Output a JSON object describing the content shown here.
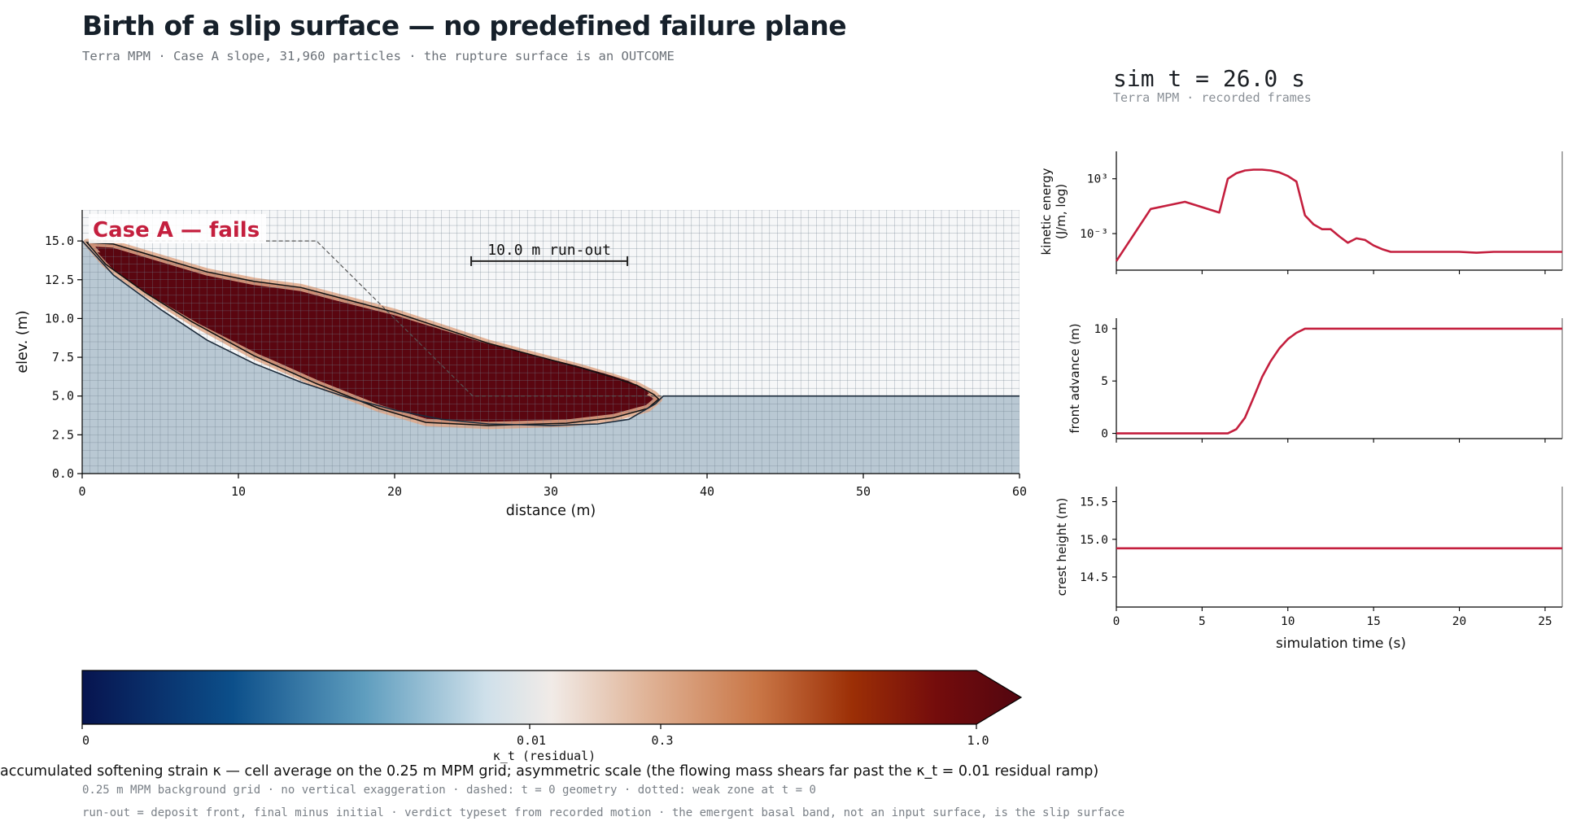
{
  "header": {
    "title": "Birth of a slip surface — no predefined failure plane",
    "subtitle": "Terra MPM · Case A slope, 31,960 particles · the rupture surface is an OUTCOME"
  },
  "sim_readout": {
    "time_label": "sim t = 26.0 s",
    "source_label": "Terra MPM · recorded frames"
  },
  "colors": {
    "accent": "#c41f3e",
    "deposit_dark": "#5a0610",
    "ground": "#b9c8d3",
    "grid": "#6d7e8c"
  },
  "chart_data": [
    {
      "type": "heatmap",
      "title": "",
      "xlabel": "distance (m)",
      "ylabel": "elev. (m)",
      "xlim": [
        0,
        60
      ],
      "ylim": [
        0,
        17
      ],
      "xticks": [
        "0",
        "10",
        "20",
        "30",
        "40",
        "50",
        "60"
      ],
      "yticks": [
        "0.0",
        "2.5",
        "5.0",
        "7.5",
        "10.0",
        "12.5",
        "15.0"
      ],
      "annotation_verdict": "Case A — fails",
      "annotation_runout": "10.0 m run-out",
      "runout_bar_m": [
        24.9,
        34.9
      ],
      "runout_bar_y": 13.7,
      "grid": true,
      "grid_spacing_m": 0.25,
      "initial_geometry_dashed": [
        [
          0.5,
          15.0
        ],
        [
          15.0,
          15.0
        ],
        [
          25.0,
          5.0
        ],
        [
          60.0,
          5.0
        ]
      ],
      "deposit_outline": [
        [
          0.3,
          14.9
        ],
        [
          2,
          14.8
        ],
        [
          5,
          13.9
        ],
        [
          8,
          13.0
        ],
        [
          11,
          12.4
        ],
        [
          14,
          12.0
        ],
        [
          17,
          11.2
        ],
        [
          20,
          10.4
        ],
        [
          23,
          9.4
        ],
        [
          26,
          8.4
        ],
        [
          29,
          7.6
        ],
        [
          32,
          6.8
        ],
        [
          34,
          6.2
        ],
        [
          35.5,
          5.7
        ],
        [
          36.6,
          5.1
        ],
        [
          36.9,
          4.8
        ],
        [
          36.2,
          4.2
        ],
        [
          34,
          3.6
        ],
        [
          31,
          3.25
        ],
        [
          26,
          3.1
        ],
        [
          22,
          3.3
        ],
        [
          19,
          4.2
        ],
        [
          15,
          5.8
        ],
        [
          11,
          7.6
        ],
        [
          7,
          9.8
        ],
        [
          4,
          11.7
        ],
        [
          1.5,
          13.5
        ],
        [
          0.3,
          14.9
        ]
      ],
      "ground_surface_after": [
        [
          0,
          15.0
        ],
        [
          2,
          12.8
        ],
        [
          5,
          10.6
        ],
        [
          8,
          8.6
        ],
        [
          11,
          7.1
        ],
        [
          14,
          5.9
        ],
        [
          17,
          4.9
        ],
        [
          20,
          4.1
        ],
        [
          23,
          3.5
        ],
        [
          26,
          3.2
        ],
        [
          30,
          3.1
        ],
        [
          33,
          3.2
        ],
        [
          35,
          3.5
        ],
        [
          36.7,
          4.5
        ],
        [
          37.2,
          5.0
        ],
        [
          60,
          5.0
        ]
      ],
      "plateau_elevation": 5.0
    },
    {
      "type": "line",
      "xlabel": "",
      "ylabel": "kinetic energy (J/m, log)",
      "yscale": "log",
      "ylim": [
        1e-07,
        1000000.0
      ],
      "xlim": [
        0,
        26
      ],
      "yticks": [
        "10³",
        "10⁻³"
      ],
      "series": [
        {
          "x": [
            0,
            2,
            4,
            6,
            6.5,
            7,
            7.5,
            8,
            8.5,
            9,
            9.5,
            10,
            10.5,
            11,
            11.5,
            12,
            12.5,
            13,
            13.5,
            14,
            14.5,
            15,
            15.5,
            16,
            16.5,
            17,
            18,
            19,
            20,
            21,
            22,
            23,
            24,
            25,
            26
          ],
          "y": [
            1e-06,
            0.5,
            3,
            0.2,
            1000,
            4000,
            8000,
            10000,
            10000,
            8000,
            5000,
            2000,
            500,
            0.1,
            0.01,
            0.003,
            0.003,
            0.0005,
            0.0001,
            0.0003,
            0.0002,
            5e-05,
            2e-05,
            1e-05,
            1e-05,
            1e-05,
            1e-05,
            1e-05,
            1e-05,
            8e-06,
            1e-05,
            1e-05,
            1e-05,
            1e-05,
            1e-05
          ]
        }
      ]
    },
    {
      "type": "line",
      "xlabel": "",
      "ylabel": "front advance (m)",
      "xlim": [
        0,
        26
      ],
      "ylim": [
        -0.5,
        11
      ],
      "yticks": [
        "0",
        "5",
        "10"
      ],
      "series": [
        {
          "x": [
            0,
            6.5,
            7,
            7.5,
            8,
            8.5,
            9,
            9.5,
            10,
            10.5,
            11,
            11.5,
            26
          ],
          "y": [
            0,
            0,
            0.4,
            1.5,
            3.4,
            5.4,
            6.9,
            8.1,
            9.0,
            9.6,
            10.0,
            10.0,
            10.0
          ]
        }
      ]
    },
    {
      "type": "line",
      "xlabel": "simulation time (s)",
      "ylabel": "crest height (m)",
      "xlim": [
        0,
        26
      ],
      "ylim": [
        14.1,
        15.7
      ],
      "yticks": [
        "14.5",
        "15.0",
        "15.5"
      ],
      "xticks": [
        "0",
        "5",
        "10",
        "15",
        "20",
        "25"
      ],
      "series": [
        {
          "x": [
            0,
            26
          ],
          "y": [
            14.88,
            14.88
          ]
        }
      ]
    }
  ],
  "colorbar": {
    "label": "κ_t (residual)",
    "ticks": [
      "0",
      "0.01",
      "0.3",
      "1.0"
    ],
    "caption": "accumulated softening strain κ — cell average on the 0.25 m MPM grid; asymmetric scale (the flowing mass shears far past the κ_t = 0.01 residual ramp)"
  },
  "footer": {
    "line1": "0.25 m MPM background grid · no vertical exaggeration · dashed: t = 0 geometry · dotted: weak zone at t = 0",
    "line2": "run-out = deposit front, final minus initial · verdict typeset from recorded motion · the emergent basal band, not an input surface, is the slip surface"
  }
}
